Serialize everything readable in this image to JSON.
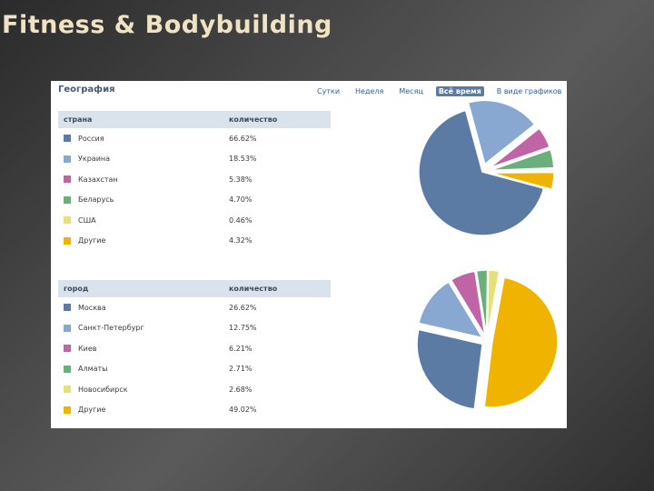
{
  "slide_title": "Fitness & Bodybuilding",
  "panel": {
    "title": "География",
    "tabs": [
      "Сутки",
      "Неделя",
      "Месяц",
      "Всё время",
      "В виде графиков"
    ],
    "active_tab": "Всё время"
  },
  "countries": {
    "col1": "страна",
    "col2": "количество",
    "rows": [
      {
        "name": "Россия",
        "value": "66.62%",
        "color": "#5b7ba5"
      },
      {
        "name": "Украина",
        "value": "18.53%",
        "color": "#88a7d1"
      },
      {
        "name": "Казахстан",
        "value": "5.38%",
        "color": "#c064a6"
      },
      {
        "name": "Беларусь",
        "value": "4.70%",
        "color": "#6aaf7c"
      },
      {
        "name": "США",
        "value": "0.46%",
        "color": "#e5e07a"
      },
      {
        "name": "Другие",
        "value": "4.32%",
        "color": "#f0b400"
      }
    ]
  },
  "cities": {
    "col1": "город",
    "col2": "количество",
    "rows": [
      {
        "name": "Москва",
        "value": "26.62%",
        "color": "#5b7ba5"
      },
      {
        "name": "Санкт-Петербург",
        "value": "12.75%",
        "color": "#88a7d1"
      },
      {
        "name": "Киев",
        "value": "6.21%",
        "color": "#c064a6"
      },
      {
        "name": "Алматы",
        "value": "2.71%",
        "color": "#6aaf7c"
      },
      {
        "name": "Новосибирск",
        "value": "2.68%",
        "color": "#e5e07a"
      },
      {
        "name": "Другие",
        "value": "49.02%",
        "color": "#f0b400"
      }
    ]
  },
  "chart_data": [
    {
      "type": "pie",
      "categories": [
        "Россия",
        "Украина",
        "Казахстан",
        "Беларусь",
        "США",
        "Другие"
      ],
      "values": [
        66.62,
        18.53,
        5.38,
        4.7,
        0.46,
        4.32
      ]
    },
    {
      "type": "pie",
      "categories": [
        "Москва",
        "Санкт-Петербург",
        "Киев",
        "Алматы",
        "Новосибирск",
        "Другие"
      ],
      "values": [
        26.62,
        12.75,
        6.21,
        2.71,
        2.68,
        49.02
      ]
    }
  ]
}
